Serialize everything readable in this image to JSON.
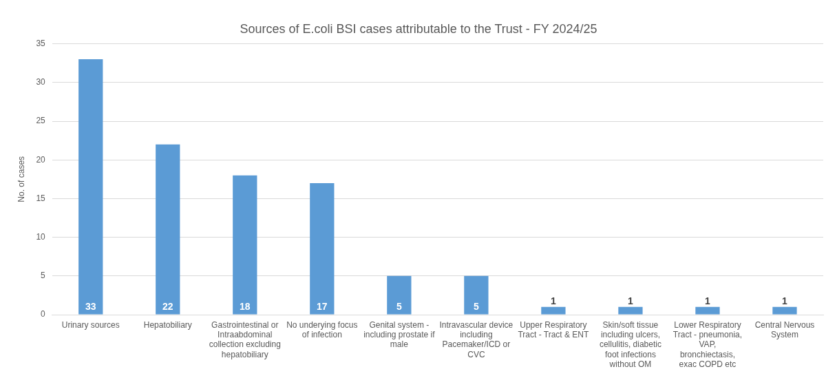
{
  "chart_data": {
    "type": "bar",
    "title": "Sources of E.coli BSI cases attributable to the Trust - FY 2024/25",
    "ylabel": "No. of cases",
    "categories": [
      "Urinary sources",
      "Hepatobiliary",
      "Gastrointestinal or Intraabdominal collection excluding hepatobiliary",
      "No underying focus of infection",
      "Genital system - including prostate if male",
      "Intravascular device including Pacemaker/ICD or CVC",
      "Upper Respiratory Tract - Tract & ENT",
      "Skin/soft tissue including ulcers, cellulitis, diabetic foot infections without OM",
      "Lower Respiratory Tract - pneumonia, VAP, bronchiectasis, exac COPD etc",
      "Central Nervous System"
    ],
    "values": [
      33,
      22,
      18,
      17,
      5,
      5,
      1,
      1,
      1,
      1
    ],
    "color": "#5b9bd5",
    "ylim": [
      0,
      35
    ],
    "yticks": [
      0,
      5,
      10,
      15,
      20,
      25,
      30,
      35
    ],
    "grid": "y",
    "legend": false,
    "data_labels": true
  }
}
